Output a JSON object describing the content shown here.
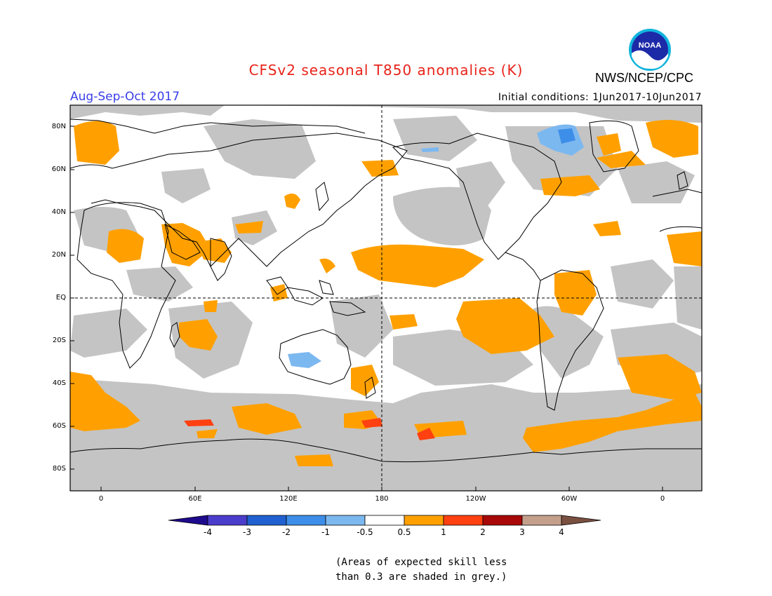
{
  "title": "CFSv2 seasonal T850 anomalies (K)",
  "period": "Aug-Sep-Oct 2017",
  "initial_conditions": "Initial conditions: 1Jun2017-10Jun2017",
  "agency": "NWS/NCEP/CPC",
  "logo_text": "NOAA",
  "lat_labels": [
    "80N",
    "60N",
    "40N",
    "20N",
    "EQ",
    "20S",
    "40S",
    "60S",
    "80S"
  ],
  "lon_labels": [
    "0",
    "60E",
    "120E",
    "180",
    "120W",
    "60W",
    "0"
  ],
  "colorbar": {
    "colors": [
      "#1e0a8c",
      "#4b3dcc",
      "#2060d0",
      "#3d8ee8",
      "#7cb8f0",
      "#ffffff",
      "#ffa000",
      "#ff4010",
      "#a80808",
      "#c4a08c",
      "#7a5040"
    ],
    "labels": [
      "-4",
      "-3",
      "-2",
      "-1",
      "-0.5",
      "0.5",
      "1",
      "2",
      "3",
      "4"
    ]
  },
  "note_lines": [
    "(Areas of expected skill less",
    "than 0.3 are shaded in grey.)"
  ],
  "colors": {
    "skill_grey": "#c4c4c4",
    "warm": "#ffa000",
    "warm2": "#ff4010",
    "cool": "#7cb8f0",
    "cool2": "#3d8ee8"
  }
}
